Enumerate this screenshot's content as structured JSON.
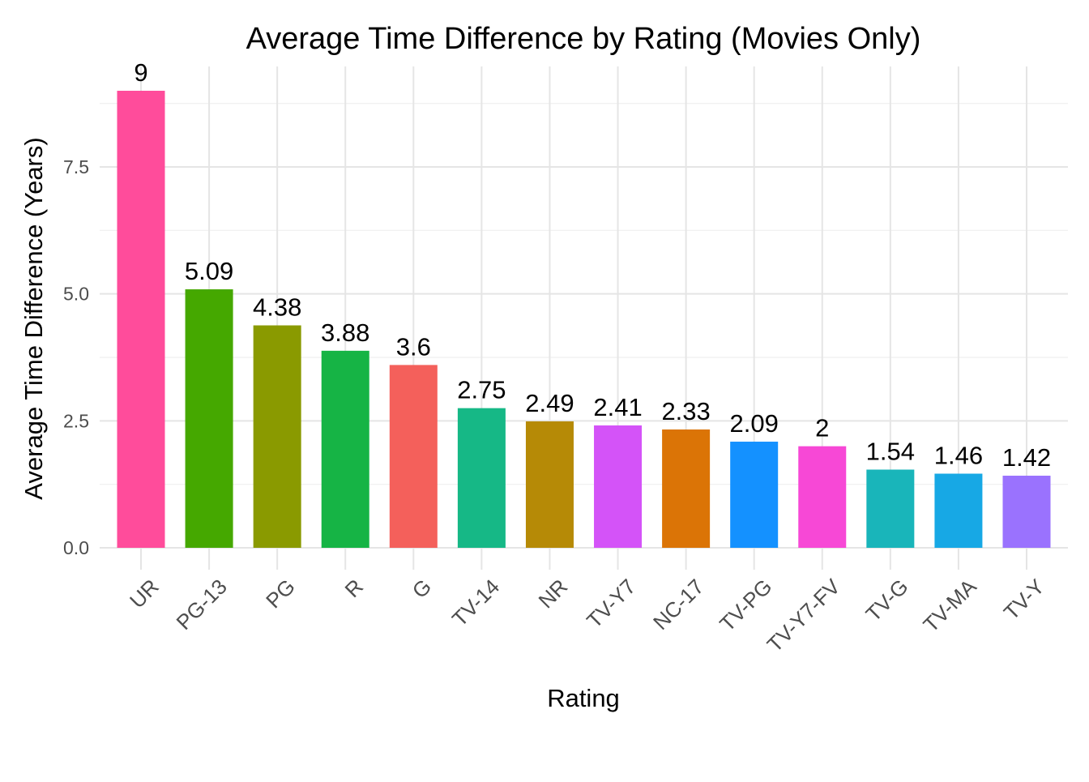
{
  "chart_data": {
    "type": "bar",
    "title": "Average Time Difference by Rating (Movies Only)",
    "xlabel": "Rating",
    "ylabel": "Average Time Difference (Years)",
    "categories": [
      "UR",
      "PG-13",
      "PG",
      "R",
      "G",
      "TV-14",
      "NR",
      "TV-Y7",
      "NC-17",
      "TV-PG",
      "TV-Y7-FV",
      "TV-G",
      "TV-MA",
      "TV-Y"
    ],
    "values": [
      9,
      5.09,
      4.38,
      3.88,
      3.6,
      2.75,
      2.49,
      2.41,
      2.33,
      2.09,
      2,
      1.54,
      1.46,
      1.42
    ],
    "value_labels": [
      "9",
      "5.09",
      "4.38",
      "3.88",
      "3.6",
      "2.75",
      "2.49",
      "2.41",
      "2.33",
      "2.09",
      "2",
      "1.54",
      "1.46",
      "1.42"
    ],
    "colors": [
      "#FF4C9B",
      "#45A800",
      "#8A9A00",
      "#16B445",
      "#F4605B",
      "#16B886",
      "#B68A06",
      "#D453F8",
      "#DB7406",
      "#1491FF",
      "#F748D6",
      "#19B5BA",
      "#17A8E5",
      "#9A72FE"
    ],
    "ylim": [
      0,
      9.45
    ],
    "yticks": [
      0,
      2.5,
      5,
      7.5
    ],
    "ytick_labels": [
      "0.0",
      "2.5",
      "5.0",
      "7.5"
    ],
    "minor_yticks": [
      1.25,
      3.75,
      6.25,
      8.75
    ],
    "grid": true,
    "legend": "none"
  }
}
